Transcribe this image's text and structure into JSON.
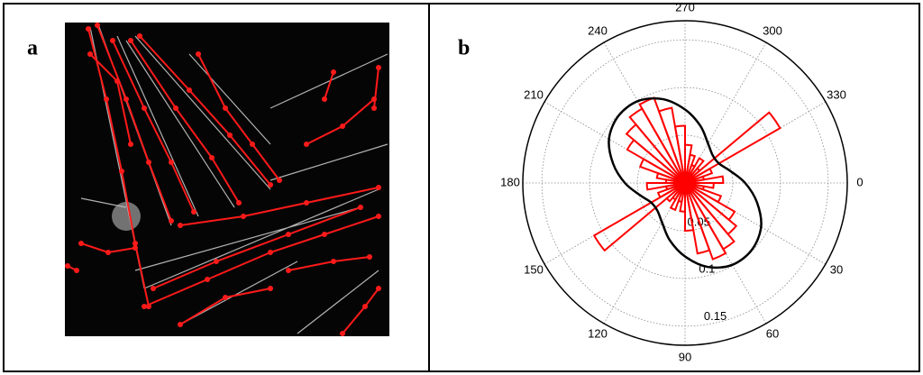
{
  "panel_labels": [
    "a",
    "b"
  ],
  "chart_data": {
    "type": "polar",
    "rlim": [
      0,
      0.17
    ],
    "rticks": [
      0.05,
      0.1,
      0.15
    ],
    "thetaticks": [
      0,
      30,
      60,
      90,
      120,
      150,
      180,
      210,
      240,
      270,
      300,
      330
    ],
    "theta_direction": "clockwise",
    "grid": true,
    "series": [
      {
        "kind": "rose",
        "color": "#ff0000",
        "bins": [
          0,
          10,
          20,
          30,
          40,
          50,
          60,
          70,
          80,
          90,
          100,
          110,
          120,
          130,
          140,
          150,
          160,
          170,
          180,
          190,
          200,
          210,
          220,
          230,
          240,
          250,
          260,
          270,
          280,
          290,
          300,
          310,
          320,
          330,
          340,
          350,
          360
        ],
        "values": [
          0.03,
          0.02,
          0.04,
          0.06,
          0.07,
          0.08,
          0.085,
          0.075,
          0.05,
          0.03,
          0.02,
          0.03,
          0.02,
          0.025,
          0.11,
          0.03,
          0.02,
          0.04,
          0.02,
          0.03,
          0.05,
          0.07,
          0.08,
          0.09,
          0.095,
          0.08,
          0.06,
          0.04,
          0.03,
          0.02,
          0.03,
          0.02,
          0.115,
          0.03,
          0.02,
          0.04
        ]
      },
      {
        "kind": "curve",
        "color": "#000000",
        "theta": [
          0,
          15,
          30,
          45,
          60,
          75,
          90,
          105,
          120,
          135,
          150,
          165,
          180,
          195,
          210,
          225,
          240,
          255,
          270,
          285,
          300,
          315,
          330,
          345
        ],
        "values": [
          0.063,
          0.078,
          0.092,
          0.099,
          0.099,
          0.091,
          0.077,
          0.062,
          0.048,
          0.041,
          0.041,
          0.049,
          0.063,
          0.078,
          0.092,
          0.099,
          0.099,
          0.091,
          0.077,
          0.062,
          0.048,
          0.041,
          0.041,
          0.049
        ]
      }
    ]
  }
}
